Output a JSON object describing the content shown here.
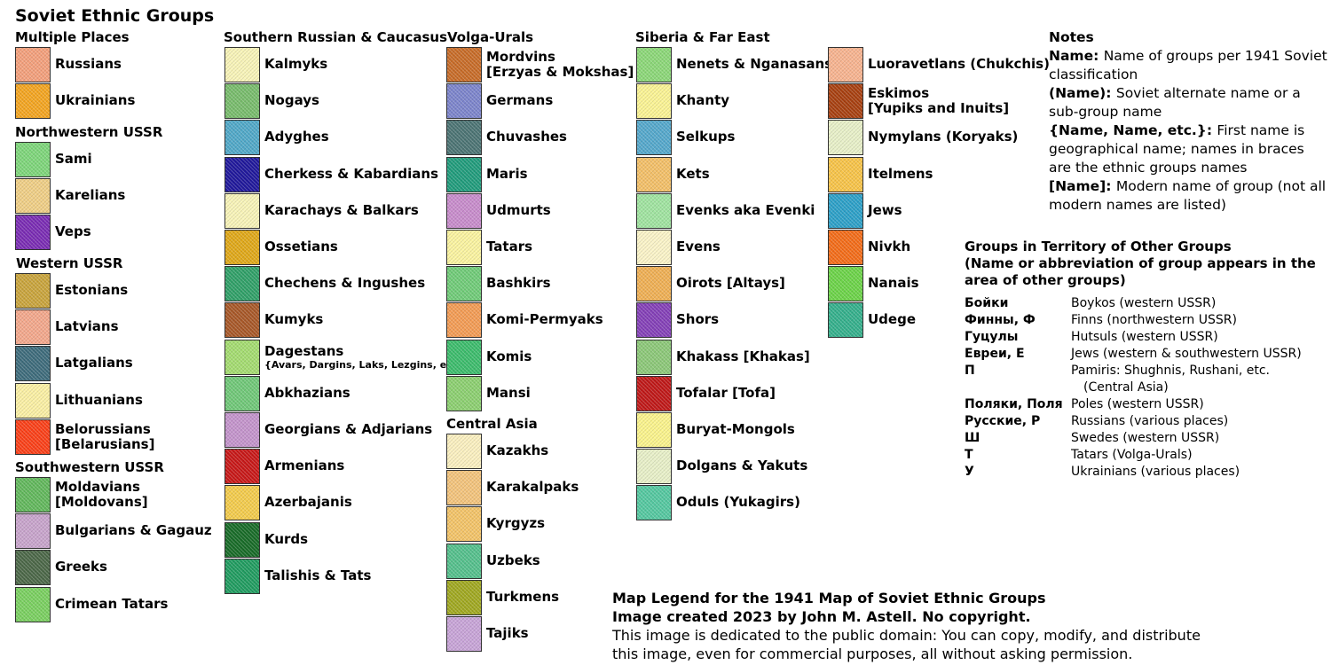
{
  "title": "Soviet Ethnic Groups",
  "sections": [
    {
      "header": "Multiple Places",
      "entries": [
        {
          "label": "Russians",
          "color": "#f4a07c"
        },
        {
          "label": "Ukrainians",
          "color": "#f4a520"
        }
      ]
    },
    {
      "header": "Northwestern USSR",
      "entries": [
        {
          "label": "Sami",
          "color": "#7ed67a"
        },
        {
          "label": "Karelians",
          "color": "#f0cf86"
        },
        {
          "label": "Veps",
          "color": "#7a2cb4"
        }
      ]
    },
    {
      "header": "Western USSR",
      "entries": [
        {
          "label": "Estonians",
          "color": "#c9a43c"
        },
        {
          "label": "Latvians",
          "color": "#f4a88c"
        },
        {
          "label": "Latgalians",
          "color": "#3e6c7c"
        },
        {
          "label": "Lithuanians",
          "color": "#fbf0a4"
        },
        {
          "label": "Belorussians",
          "label2": "[Belarusians]",
          "color": "#fb4018"
        }
      ]
    },
    {
      "header": "Southwestern USSR",
      "entries": [
        {
          "label": "Moldavians",
          "label2": "[Moldovans]",
          "color": "#62b85c"
        },
        {
          "label": "Bulgarians & Gagauz",
          "color": "#c8a4cc"
        },
        {
          "label": "Greeks",
          "color": "#4c6848"
        },
        {
          "label": "Crimean Tatars",
          "color": "#7ad060"
        }
      ]
    },
    {
      "header": "Southern Russian & Caucasus",
      "entries": [
        {
          "label": "Kalmyks",
          "color": "#f8f4b8"
        },
        {
          "label": "Nogays",
          "color": "#78bc6c"
        },
        {
          "label": "Adyghes",
          "color": "#50a8c8"
        },
        {
          "label": "Cherkess & Kabardians",
          "color": "#20189c"
        },
        {
          "label": "Karachays & Balkars",
          "color": "#f8f4b8"
        },
        {
          "label": "Ossetians",
          "color": "#e0a818"
        },
        {
          "label": "Chechens & Ingushes",
          "color": "#30a068"
        },
        {
          "label": "Kumyks",
          "color": "#a85828"
        },
        {
          "label": "Dagestans",
          "small": "{Avars, Dargins, Laks, Lezgins, etc.}",
          "color": "#a4dc70"
        },
        {
          "label": "Abkhazians",
          "color": "#70c878"
        },
        {
          "label": "Georgians & Adjarians",
          "color": "#c494cc"
        },
        {
          "label": "Armenians",
          "color": "#c81818"
        },
        {
          "label": "Azerbajanis",
          "color": "#f4cc4c"
        },
        {
          "label": "Kurds",
          "color": "#186c28"
        },
        {
          "label": "Talishis & Tats",
          "color": "#209c60"
        }
      ]
    },
    {
      "header": "Volga-Urals",
      "entries": [
        {
          "label": "Mordvins",
          "label2": "[Erzyas & Mokshas]",
          "color": "#c86c28"
        },
        {
          "label": "Germans",
          "color": "#7c84cc"
        },
        {
          "label": "Chuvashes",
          "color": "#4c7474"
        },
        {
          "label": "Maris",
          "color": "#209c7c"
        },
        {
          "label": "Udmurts",
          "color": "#c88ccc"
        },
        {
          "label": "Tatars",
          "color": "#fbf4a0"
        },
        {
          "label": "Bashkirs",
          "color": "#70cc78"
        },
        {
          "label": "Komi-Permyaks",
          "color": "#f49c54"
        },
        {
          "label": "Komis",
          "color": "#3cbc6c"
        },
        {
          "label": "Mansi",
          "color": "#8cd070"
        }
      ]
    },
    {
      "header": "Central Asia",
      "entries": [
        {
          "label": "Kazakhs",
          "color": "#fbf0c0"
        },
        {
          "label": "Karakalpaks",
          "color": "#f4c47c"
        },
        {
          "label": "Kyrgyzs",
          "color": "#f4c468"
        },
        {
          "label": "Uzbeks",
          "color": "#54c08c"
        },
        {
          "label": "Turkmens",
          "color": "#a0a820"
        },
        {
          "label": "Tajiks",
          "color": "#c8a4d8"
        }
      ]
    },
    {
      "header": "Siberia & Far East",
      "entries": [
        {
          "label": "Nenets & Nganasans",
          "color": "#8cd878"
        },
        {
          "label": "Khanty",
          "color": "#fbf494"
        },
        {
          "label": "Selkups",
          "color": "#54a8cc"
        },
        {
          "label": "Kets",
          "color": "#f4c068"
        },
        {
          "label": "Evenks aka Evenki",
          "color": "#a0e4a0"
        },
        {
          "label": "Evens",
          "color": "#fbf4c8"
        },
        {
          "label": "Oirots [Altays]",
          "color": "#f0b054"
        },
        {
          "label": "Shors",
          "color": "#8440b8"
        },
        {
          "label": "Khakass [Khakas]",
          "color": "#8cc878"
        },
        {
          "label": "Tofalar [Tofa]",
          "color": "#c01818"
        },
        {
          "label": "Buryat-Mongols",
          "color": "#fbf48c"
        },
        {
          "label": "Dolgans & Yakuts",
          "color": "#e8f0c8"
        },
        {
          "label": "Oduls (Yukagirs)",
          "color": "#54c8a0"
        }
      ]
    },
    {
      "header": "",
      "entries": [
        {
          "label": "Luoravetlans (Chukchis)",
          "color": "#f8b490"
        },
        {
          "label": "Eskimos",
          "label2": "[Yupiks and Inuits]",
          "color": "#a84010"
        },
        {
          "label": "Nymylans (Koryaks)",
          "color": "#e8f0c8"
        },
        {
          "label": "Itelmens",
          "color": "#f8c448"
        },
        {
          "label": "Jews",
          "color": "#2ca0c8"
        },
        {
          "label": "Nivkh",
          "color": "#f46c18"
        },
        {
          "label": "Nanais",
          "color": "#6cd448"
        },
        {
          "label": "Udege",
          "color": "#34b08c"
        }
      ]
    }
  ],
  "notes": {
    "header": "Notes",
    "items": [
      {
        "key": "Name:",
        "text": "Name of groups per 1941 Soviet classification"
      },
      {
        "key": "(Name):",
        "text": "Soviet alternate name or a sub-group name"
      },
      {
        "key": "{Name, Name, etc.}:",
        "text": "First name is geographical  name; names in braces are the ethnic groups names"
      },
      {
        "key": "[Name]:",
        "text": "Modern name of group  (not all modern names are listed)"
      }
    ]
  },
  "territory": {
    "header": "Groups in Territory of Other Groups",
    "subheader": "(Name or abbreviation of group appears in  the area of other groups)",
    "rows": [
      {
        "k": "Бойки",
        "v": "Boykos (western USSR)"
      },
      {
        "k": "Финны, Ф",
        "v": "Finns (northwestern USSR)"
      },
      {
        "k": "Гуцулы",
        "v": "Hutsuls (western USSR)"
      },
      {
        "k": "Евреи, Е",
        "v": "Jews (western & southwestern USSR)"
      },
      {
        "k": "П",
        "v": "Pamiris: Shughnis, Rushani, etc.",
        "v2": "(Central Asia)"
      },
      {
        "k": "Поляки, Поля",
        "v": "Poles (western USSR)"
      },
      {
        "k": "Русские, Р",
        "v": "Russians (various places)"
      },
      {
        "k": "Ш",
        "v": "Swedes (western USSR)"
      },
      {
        "k": "Т",
        "v": "Tatars (Volga-Urals)"
      },
      {
        "k": "У",
        "v": "Ukrainians (various places)"
      }
    ]
  },
  "footer": {
    "line1": "Map Legend for the 1941 Map of Soviet Ethnic Groups",
    "line2": "Image created 2023 by John M. Astell. No copyright.",
    "line3": "This image is dedicated to the public domain: You can copy, modify, and distribute",
    "line4": "this image, even for commercial purposes, all without asking permission."
  }
}
